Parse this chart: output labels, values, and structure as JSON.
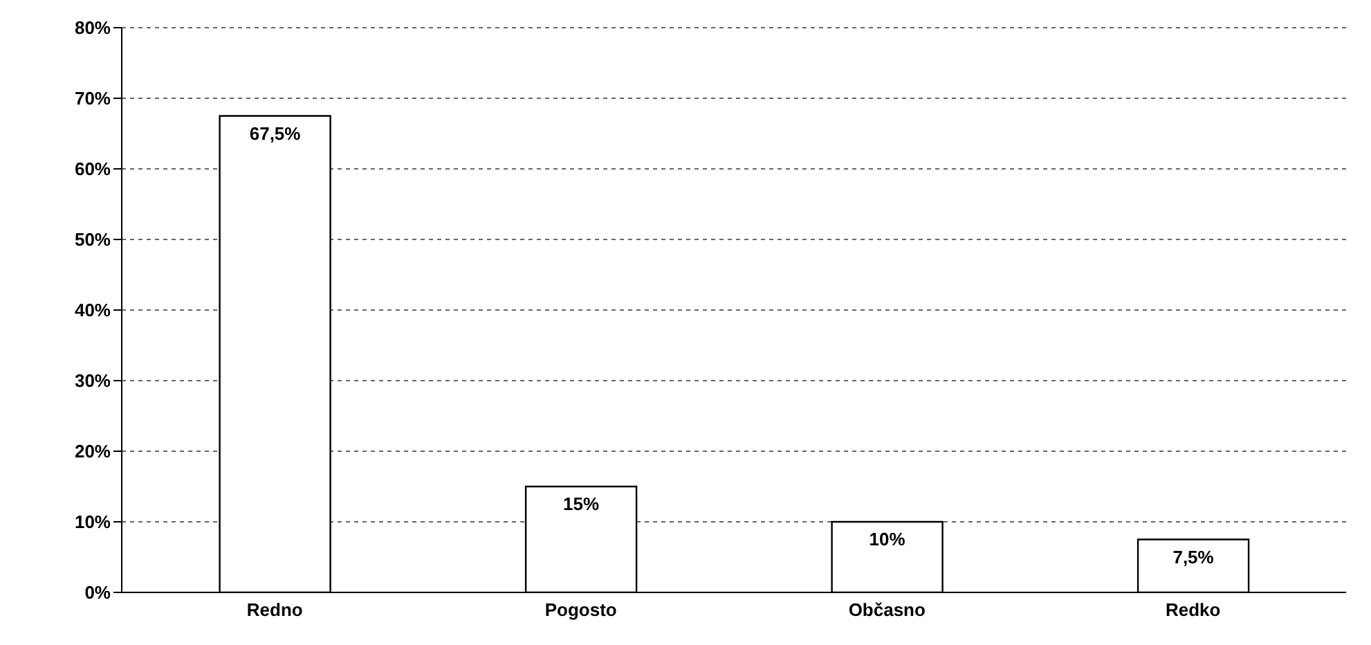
{
  "chart_data": {
    "type": "bar",
    "categories": [
      "Redno",
      "Pogosto",
      "Občasno",
      "Redko"
    ],
    "values": [
      67.5,
      15,
      10,
      7.5
    ],
    "value_labels": [
      "67,5%",
      "15%",
      "10%",
      "7,5%"
    ],
    "color": "#ffffff",
    "ylim": [
      0,
      80
    ],
    "yticks": [
      {
        "value": 0,
        "label": "0%"
      },
      {
        "value": 10,
        "label": "10%"
      },
      {
        "value": 20,
        "label": "20%"
      },
      {
        "value": 30,
        "label": "30%"
      },
      {
        "value": 40,
        "label": "40%"
      },
      {
        "value": 50,
        "label": "50%"
      },
      {
        "value": 60,
        "label": "60%"
      },
      {
        "value": 70,
        "label": "70%"
      },
      {
        "value": 80,
        "label": "80%"
      }
    ],
    "grid": "y"
  }
}
